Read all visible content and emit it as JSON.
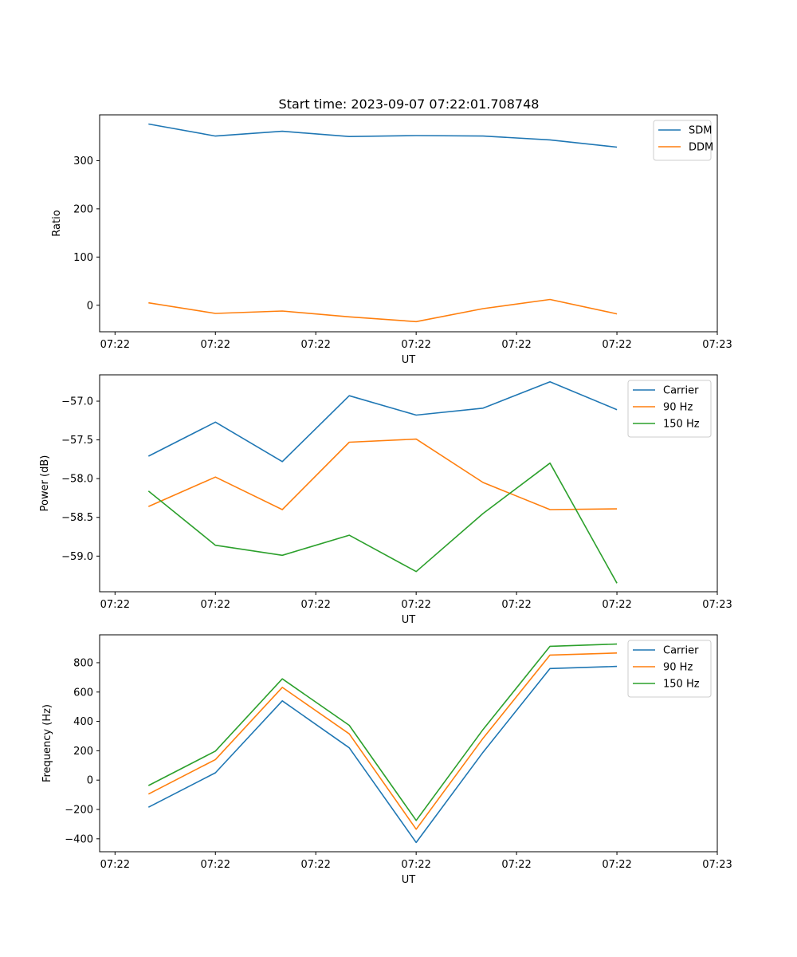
{
  "figure_title": "Start time: 2023-09-07 07:22:01.708748",
  "chart_data": [
    {
      "type": "line",
      "title": "Start time: 2023-09-07 07:22:01.708748",
      "xlabel": "UT",
      "ylabel": "Ratio",
      "x": [
        1,
        2,
        3,
        4,
        5,
        6,
        7,
        8
      ],
      "xlim": [
        0.27,
        9.5
      ],
      "xticks": [
        0.5,
        2,
        3.5,
        5,
        6.5,
        8,
        9.5
      ],
      "xtick_labels": [
        "07:22",
        "07:22",
        "07:22",
        "07:22",
        "07:22",
        "07:22",
        "07:23"
      ],
      "ylim": [
        -55,
        395
      ],
      "yticks": [
        0,
        100,
        200,
        300
      ],
      "ytick_labels": [
        "0",
        "100",
        "200",
        "300"
      ],
      "legend": "top-right",
      "series": [
        {
          "name": "SDM",
          "color": "#1f77b4",
          "values": [
            376,
            351,
            361,
            350,
            352,
            351,
            343,
            328
          ]
        },
        {
          "name": "DDM",
          "color": "#ff7f0e",
          "values": [
            5,
            -17,
            -12,
            -24,
            -34,
            -7,
            12,
            -18
          ]
        }
      ]
    },
    {
      "type": "line",
      "xlabel": "UT",
      "ylabel": "Power (dB)",
      "x": [
        1,
        2,
        3,
        4,
        5,
        6,
        7,
        8
      ],
      "xlim": [
        0.27,
        9.5
      ],
      "xticks": [
        0.5,
        2,
        3.5,
        5,
        6.5,
        8,
        9.5
      ],
      "xtick_labels": [
        "07:22",
        "07:22",
        "07:22",
        "07:22",
        "07:22",
        "07:22",
        "07:23"
      ],
      "ylim": [
        -59.46,
        -56.66
      ],
      "yticks": [
        -59.0,
        -58.5,
        -58.0,
        -57.5,
        -57.0
      ],
      "ytick_labels": [
        "−59.0",
        "−58.5",
        "−58.0",
        "−57.5",
        "−57.0"
      ],
      "legend": "top-right",
      "series": [
        {
          "name": "Carrier",
          "color": "#1f77b4",
          "values": [
            -57.71,
            -57.27,
            -57.78,
            -56.93,
            -57.18,
            -57.09,
            -56.75,
            -57.11
          ]
        },
        {
          "name": "90 Hz",
          "color": "#ff7f0e",
          "values": [
            -58.36,
            -57.98,
            -58.4,
            -57.53,
            -57.49,
            -58.05,
            -58.4,
            -58.39
          ]
        },
        {
          "name": "150 Hz",
          "color": "#2ca02c",
          "values": [
            -58.16,
            -58.86,
            -58.99,
            -58.73,
            -59.2,
            -58.45,
            -57.8,
            -59.35
          ]
        }
      ]
    },
    {
      "type": "line",
      "xlabel": "UT",
      "ylabel": "Frequency (Hz)",
      "x": [
        1,
        2,
        3,
        4,
        5,
        6,
        7,
        8
      ],
      "xlim": [
        0.27,
        9.5
      ],
      "xticks": [
        0.5,
        2,
        3.5,
        5,
        6.5,
        8,
        9.5
      ],
      "xtick_labels": [
        "07:22",
        "07:22",
        "07:22",
        "07:22",
        "07:22",
        "07:22",
        "07:23"
      ],
      "ylim": [
        -488,
        990
      ],
      "yticks": [
        -400,
        -200,
        0,
        200,
        400,
        600,
        800
      ],
      "ytick_labels": [
        "−400",
        "−200",
        "0",
        "200",
        "400",
        "600",
        "800"
      ],
      "legend": "top-right",
      "series": [
        {
          "name": "Carrier",
          "color": "#1f77b4",
          "values": [
            -185,
            50,
            540,
            220,
            -425,
            190,
            760,
            775
          ]
        },
        {
          "name": "90 Hz",
          "color": "#ff7f0e",
          "values": [
            -95,
            140,
            632,
            315,
            -335,
            285,
            852,
            866
          ]
        },
        {
          "name": "150 Hz",
          "color": "#2ca02c",
          "values": [
            -37,
            198,
            690,
            373,
            -275,
            345,
            912,
            927
          ]
        }
      ]
    }
  ]
}
